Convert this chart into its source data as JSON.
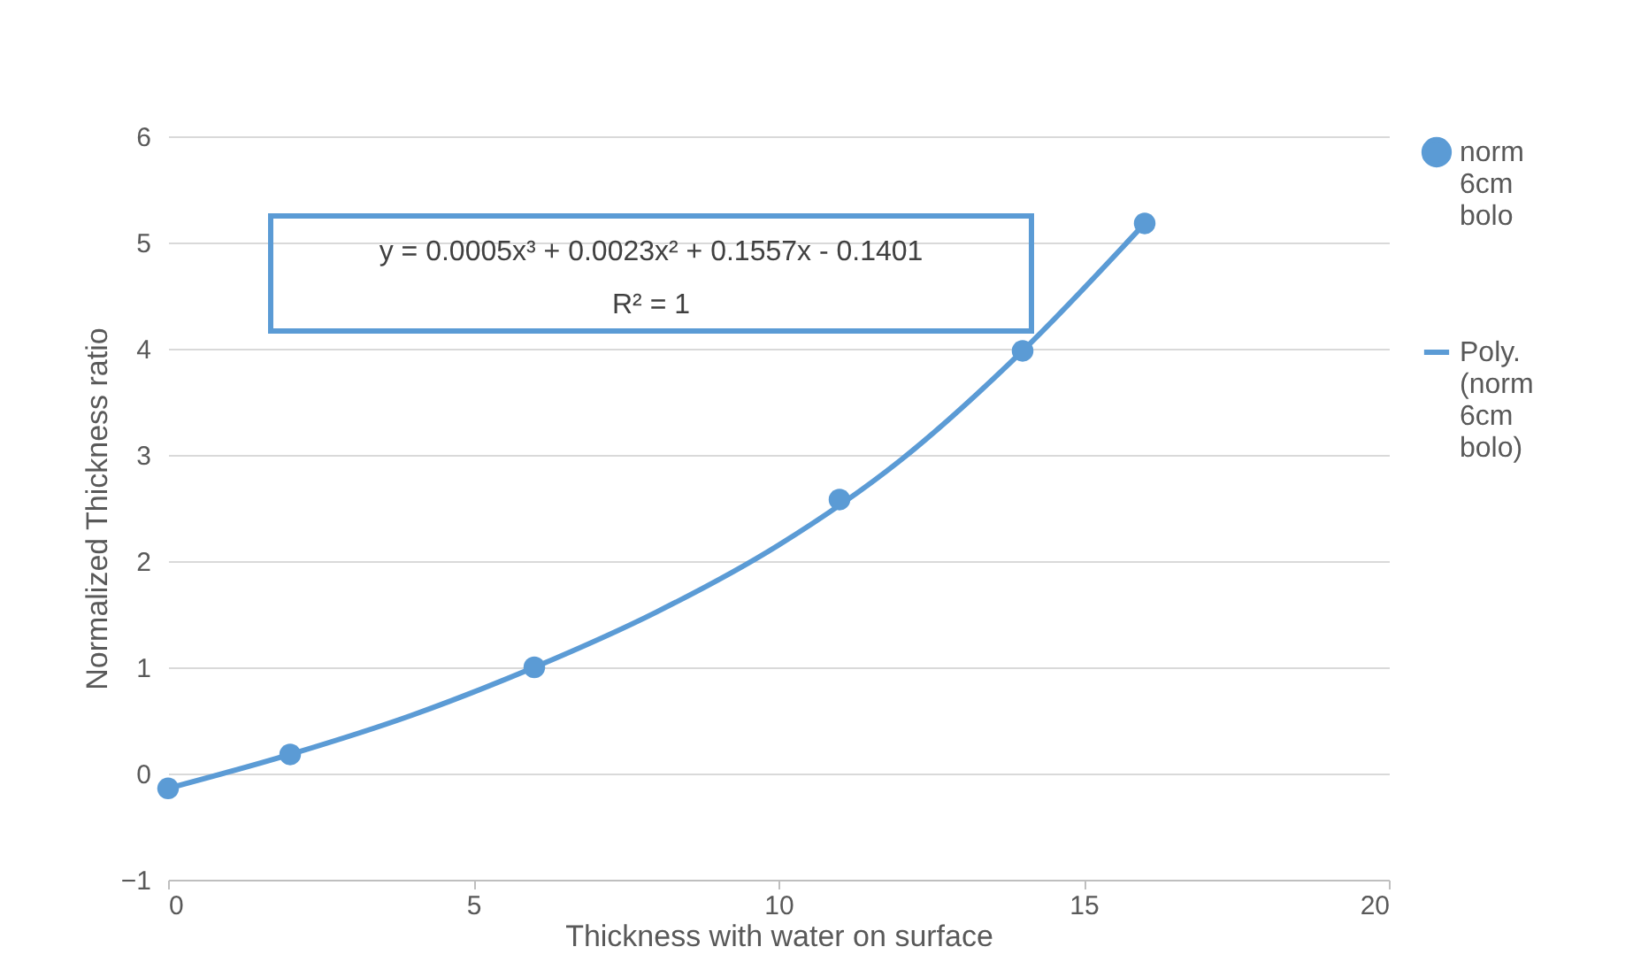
{
  "chart_data": {
    "type": "scatter",
    "xlabel": "Thickness with water on surface",
    "ylabel": "Normalized Thickness ratio",
    "annotations": [
      "y = 0.0005x³ + 0.0023x² + 0.1557x - 0.1401",
      "R² = 1"
    ],
    "x": [
      0,
      2,
      6,
      11,
      14,
      16
    ],
    "series": [
      {
        "name": "norm 6cm bolo",
        "color": "#5b9bd5",
        "marker": "circle",
        "values": [
          -0.14,
          0.18,
          1.0,
          2.58,
          3.98,
          5.18
        ]
      },
      {
        "name": "Poly. (norm 6cm bolo)",
        "type": "line",
        "color": "#5b9bd5",
        "x": [
          0,
          2,
          4,
          6,
          8,
          10,
          12,
          14,
          16
        ],
        "values": [
          -0.14,
          0.18,
          0.55,
          1.0,
          1.52,
          2.15,
          2.95,
          3.98,
          5.18
        ]
      }
    ],
    "xlim": [
      0,
      20
    ],
    "xticks": [
      0,
      5,
      10,
      15,
      20
    ],
    "ylim": [
      -1,
      6
    ],
    "yticks": [
      -1,
      0,
      1,
      2,
      3,
      4,
      5,
      6
    ],
    "grid": "y",
    "legend": "right"
  }
}
